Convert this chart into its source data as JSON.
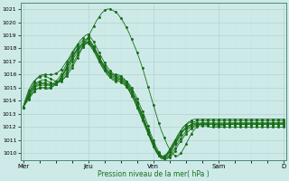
{
  "xlabel": "Pression niveau de la mer( hPa )",
  "ylim": [
    1009.5,
    1021.5
  ],
  "yticks": [
    1010,
    1011,
    1012,
    1013,
    1014,
    1015,
    1016,
    1017,
    1018,
    1019,
    1020,
    1021
  ],
  "day_labels": [
    "Mer",
    "Jeu",
    "Ven",
    "Sam",
    "D"
  ],
  "day_positions": [
    0,
    24,
    48,
    72,
    96
  ],
  "xlim": [
    0,
    96
  ],
  "bg_color": "#ceeae8",
  "grid_major_color": "#b0d4d0",
  "grid_minor_color": "#c4e4e0",
  "line_color": "#1a6e1a",
  "series": [
    [
      1013.5,
      1014.2,
      1014.8,
      1015.2,
      1015.5,
      1015.7,
      1015.8,
      1015.9,
      1015.9,
      1015.8,
      1015.7,
      1015.6,
      1015.5,
      1015.5,
      1015.6,
      1015.7,
      1015.9,
      1016.2,
      1016.5,
      1016.9,
      1017.3,
      1017.7,
      1018.1,
      1018.5,
      1018.9,
      1019.3,
      1019.7,
      1020.1,
      1020.4,
      1020.7,
      1020.9,
      1021.0,
      1021.0,
      1020.9,
      1020.8,
      1020.6,
      1020.3,
      1020.0,
      1019.6,
      1019.2,
      1018.7,
      1018.2,
      1017.7,
      1017.1,
      1016.5,
      1015.8,
      1015.1,
      1014.4,
      1013.7,
      1013.0,
      1012.3,
      1011.7,
      1011.2,
      1010.7,
      1010.3,
      1010.0,
      1009.8,
      1009.8,
      1010.0,
      1010.3,
      1010.7,
      1011.1,
      1011.5,
      1011.8,
      1012.0,
      1012.2,
      1012.3,
      1012.3,
      1012.3,
      1012.2,
      1012.2,
      1012.1,
      1012.1,
      1012.1,
      1012.2,
      1012.2,
      1012.3,
      1012.3,
      1012.3,
      1012.3,
      1012.3,
      1012.3,
      1012.3,
      1012.3,
      1012.3,
      1012.3,
      1012.3,
      1012.3,
      1012.3,
      1012.3,
      1012.3,
      1012.3,
      1012.3,
      1012.3,
      1012.3,
      1012.3,
      1012.4
    ],
    [
      1013.5,
      1014.0,
      1014.5,
      1014.9,
      1015.2,
      1015.4,
      1015.5,
      1015.6,
      1015.6,
      1015.5,
      1015.4,
      1015.3,
      1015.3,
      1015.4,
      1015.5,
      1015.7,
      1016.0,
      1016.4,
      1016.7,
      1017.1,
      1017.5,
      1017.8,
      1018.1,
      1018.3,
      1018.5,
      1018.3,
      1018.0,
      1017.7,
      1017.3,
      1016.9,
      1016.6,
      1016.3,
      1016.1,
      1016.0,
      1015.9,
      1015.9,
      1015.8,
      1015.7,
      1015.5,
      1015.3,
      1015.0,
      1014.6,
      1014.2,
      1013.7,
      1013.2,
      1012.7,
      1012.1,
      1011.5,
      1011.0,
      1010.5,
      1010.1,
      1009.8,
      1009.6,
      1009.6,
      1009.7,
      1009.9,
      1010.2,
      1010.6,
      1010.9,
      1011.2,
      1011.5,
      1011.7,
      1011.9,
      1012.0,
      1012.1,
      1012.1,
      1012.1,
      1012.1,
      1012.1,
      1012.0,
      1012.0,
      1012.0,
      1012.0,
      1012.0,
      1012.0,
      1012.0,
      1012.0,
      1012.0,
      1012.0,
      1012.0,
      1012.0,
      1012.0,
      1012.0,
      1012.0,
      1012.0,
      1012.0,
      1012.0,
      1012.0,
      1012.0,
      1012.0,
      1012.0,
      1012.0,
      1012.0,
      1012.0,
      1012.0,
      1012.0,
      1012.0
    ],
    [
      1013.5,
      1014.0,
      1014.4,
      1014.8,
      1015.1,
      1015.3,
      1015.4,
      1015.4,
      1015.4,
      1015.3,
      1015.3,
      1015.3,
      1015.3,
      1015.4,
      1015.6,
      1015.9,
      1016.2,
      1016.6,
      1017.0,
      1017.4,
      1017.7,
      1018.0,
      1018.2,
      1018.4,
      1018.5,
      1018.3,
      1018.0,
      1017.6,
      1017.2,
      1016.8,
      1016.5,
      1016.2,
      1016.0,
      1015.9,
      1015.8,
      1015.7,
      1015.6,
      1015.5,
      1015.3,
      1015.0,
      1014.7,
      1014.3,
      1013.9,
      1013.4,
      1012.9,
      1012.4,
      1011.8,
      1011.3,
      1010.8,
      1010.3,
      1009.9,
      1009.7,
      1009.6,
      1009.6,
      1009.8,
      1010.1,
      1010.4,
      1010.8,
      1011.1,
      1011.4,
      1011.7,
      1011.9,
      1012.0,
      1012.1,
      1012.2,
      1012.2,
      1012.2,
      1012.2,
      1012.2,
      1012.2,
      1012.2,
      1012.2,
      1012.2,
      1012.2,
      1012.2,
      1012.2,
      1012.2,
      1012.2,
      1012.2,
      1012.2,
      1012.2,
      1012.2,
      1012.2,
      1012.2,
      1012.2,
      1012.2,
      1012.2,
      1012.2,
      1012.2,
      1012.2,
      1012.2,
      1012.2,
      1012.2,
      1012.2,
      1012.2,
      1012.2,
      1012.2
    ],
    [
      1013.5,
      1014.0,
      1014.4,
      1014.7,
      1015.0,
      1015.2,
      1015.3,
      1015.3,
      1015.3,
      1015.2,
      1015.2,
      1015.2,
      1015.3,
      1015.5,
      1015.7,
      1016.1,
      1016.4,
      1016.8,
      1017.2,
      1017.6,
      1017.9,
      1018.2,
      1018.4,
      1018.6,
      1018.7,
      1018.4,
      1018.1,
      1017.7,
      1017.3,
      1016.9,
      1016.5,
      1016.2,
      1016.0,
      1015.8,
      1015.7,
      1015.7,
      1015.6,
      1015.4,
      1015.2,
      1014.9,
      1014.6,
      1014.2,
      1013.7,
      1013.2,
      1012.7,
      1012.2,
      1011.6,
      1011.1,
      1010.6,
      1010.2,
      1009.8,
      1009.6,
      1009.6,
      1009.7,
      1009.9,
      1010.3,
      1010.7,
      1011.0,
      1011.4,
      1011.7,
      1011.9,
      1012.1,
      1012.2,
      1012.3,
      1012.3,
      1012.3,
      1012.3,
      1012.3,
      1012.3,
      1012.3,
      1012.3,
      1012.3,
      1012.3,
      1012.3,
      1012.3,
      1012.3,
      1012.3,
      1012.3,
      1012.3,
      1012.3,
      1012.3,
      1012.3,
      1012.3,
      1012.3,
      1012.3,
      1012.3,
      1012.3,
      1012.3,
      1012.3,
      1012.3,
      1012.3,
      1012.3,
      1012.3,
      1012.3,
      1012.3,
      1012.3,
      1012.3
    ],
    [
      1013.5,
      1013.8,
      1014.1,
      1014.4,
      1014.7,
      1014.9,
      1015.0,
      1015.0,
      1015.0,
      1014.9,
      1015.0,
      1015.1,
      1015.3,
      1015.5,
      1015.8,
      1016.2,
      1016.6,
      1017.0,
      1017.4,
      1017.7,
      1018.0,
      1018.2,
      1018.4,
      1018.5,
      1018.5,
      1018.2,
      1017.9,
      1017.5,
      1017.1,
      1016.7,
      1016.4,
      1016.1,
      1015.8,
      1015.7,
      1015.6,
      1015.6,
      1015.5,
      1015.3,
      1015.1,
      1014.8,
      1014.4,
      1014.0,
      1013.5,
      1013.0,
      1012.5,
      1012.0,
      1011.5,
      1011.0,
      1010.5,
      1010.1,
      1009.8,
      1009.6,
      1009.6,
      1009.8,
      1010.1,
      1010.4,
      1010.8,
      1011.1,
      1011.4,
      1011.7,
      1011.9,
      1012.0,
      1012.1,
      1012.2,
      1012.2,
      1012.2,
      1012.2,
      1012.2,
      1012.2,
      1012.2,
      1012.2,
      1012.2,
      1012.2,
      1012.2,
      1012.2,
      1012.2,
      1012.2,
      1012.2,
      1012.2,
      1012.2,
      1012.2,
      1012.2,
      1012.2,
      1012.2,
      1012.2,
      1012.2,
      1012.2,
      1012.2,
      1012.2,
      1012.2,
      1012.2,
      1012.2,
      1012.2,
      1012.2,
      1012.2,
      1012.2,
      1012.2
    ],
    [
      1013.5,
      1013.9,
      1014.2,
      1014.5,
      1014.7,
      1014.9,
      1015.0,
      1015.0,
      1015.0,
      1015.0,
      1015.0,
      1015.1,
      1015.3,
      1015.5,
      1015.8,
      1016.1,
      1016.5,
      1016.9,
      1017.2,
      1017.6,
      1017.9,
      1018.1,
      1018.3,
      1018.4,
      1018.4,
      1018.1,
      1017.8,
      1017.4,
      1017.0,
      1016.6,
      1016.3,
      1016.0,
      1015.8,
      1015.6,
      1015.5,
      1015.5,
      1015.4,
      1015.3,
      1015.1,
      1014.8,
      1014.4,
      1014.0,
      1013.5,
      1013.1,
      1012.6,
      1012.1,
      1011.6,
      1011.1,
      1010.7,
      1010.3,
      1010.0,
      1009.8,
      1009.7,
      1009.9,
      1010.2,
      1010.5,
      1010.9,
      1011.2,
      1011.5,
      1011.8,
      1012.0,
      1012.1,
      1012.2,
      1012.3,
      1012.3,
      1012.3,
      1012.3,
      1012.3,
      1012.3,
      1012.3,
      1012.3,
      1012.3,
      1012.3,
      1012.3,
      1012.3,
      1012.3,
      1012.3,
      1012.3,
      1012.3,
      1012.3,
      1012.3,
      1012.3,
      1012.3,
      1012.3,
      1012.3,
      1012.3,
      1012.3,
      1012.3,
      1012.3,
      1012.3,
      1012.3,
      1012.3,
      1012.3,
      1012.3,
      1012.3,
      1012.3,
      1012.3
    ],
    [
      1013.5,
      1013.9,
      1014.3,
      1014.6,
      1014.9,
      1015.1,
      1015.2,
      1015.2,
      1015.2,
      1015.2,
      1015.2,
      1015.3,
      1015.5,
      1015.7,
      1016.0,
      1016.4,
      1016.8,
      1017.2,
      1017.5,
      1017.9,
      1018.2,
      1018.4,
      1018.6,
      1018.7,
      1018.8,
      1018.5,
      1018.2,
      1017.8,
      1017.4,
      1017.0,
      1016.7,
      1016.4,
      1016.1,
      1016.0,
      1015.9,
      1015.8,
      1015.7,
      1015.6,
      1015.4,
      1015.1,
      1014.7,
      1014.3,
      1013.8,
      1013.3,
      1012.8,
      1012.3,
      1011.7,
      1011.2,
      1010.7,
      1010.3,
      1010.0,
      1009.8,
      1009.8,
      1010.0,
      1010.3,
      1010.7,
      1011.0,
      1011.4,
      1011.7,
      1012.0,
      1012.2,
      1012.3,
      1012.4,
      1012.4,
      1012.5,
      1012.5,
      1012.5,
      1012.5,
      1012.5,
      1012.5,
      1012.5,
      1012.5,
      1012.5,
      1012.5,
      1012.5,
      1012.5,
      1012.5,
      1012.5,
      1012.5,
      1012.5,
      1012.5,
      1012.5,
      1012.5,
      1012.5,
      1012.5,
      1012.5,
      1012.5,
      1012.5,
      1012.5,
      1012.5,
      1012.5,
      1012.5,
      1012.5,
      1012.5,
      1012.5,
      1012.5,
      1012.5
    ],
    [
      1013.5,
      1014.1,
      1014.6,
      1015.0,
      1015.4,
      1015.7,
      1015.9,
      1016.0,
      1016.0,
      1016.0,
      1016.0,
      1016.0,
      1016.1,
      1016.2,
      1016.4,
      1016.7,
      1017.0,
      1017.3,
      1017.7,
      1018.0,
      1018.3,
      1018.6,
      1018.8,
      1019.0,
      1019.1,
      1018.8,
      1018.5,
      1018.1,
      1017.7,
      1017.3,
      1016.9,
      1016.6,
      1016.3,
      1016.1,
      1016.0,
      1016.0,
      1015.9,
      1015.7,
      1015.5,
      1015.2,
      1014.8,
      1014.4,
      1013.9,
      1013.4,
      1012.9,
      1012.3,
      1011.7,
      1011.2,
      1010.7,
      1010.3,
      1009.9,
      1009.7,
      1009.7,
      1009.9,
      1010.2,
      1010.6,
      1011.0,
      1011.3,
      1011.7,
      1012.0,
      1012.2,
      1012.4,
      1012.5,
      1012.6,
      1012.6,
      1012.6,
      1012.6,
      1012.6,
      1012.6,
      1012.6,
      1012.6,
      1012.6,
      1012.6,
      1012.6,
      1012.6,
      1012.6,
      1012.6,
      1012.6,
      1012.6,
      1012.6,
      1012.6,
      1012.6,
      1012.6,
      1012.6,
      1012.6,
      1012.6,
      1012.6,
      1012.6,
      1012.6,
      1012.6,
      1012.6,
      1012.6,
      1012.6,
      1012.6,
      1012.6,
      1012.6,
      1012.6
    ]
  ]
}
